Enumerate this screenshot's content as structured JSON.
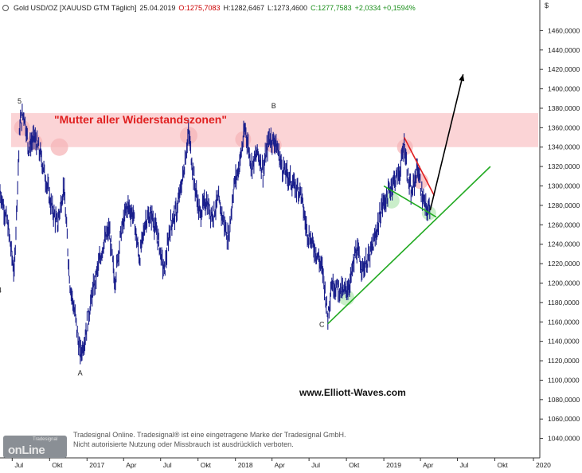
{
  "header": {
    "icon": "gold-coin-icon",
    "instrument": "Gold USD/OZ [XAUUSD GTM  Täglich]",
    "date": "25.04.2019",
    "open": "O:1275,7083",
    "high": "H:1282,6467",
    "low": "L:1273,4600",
    "close": "C:1277,7583",
    "change": "+2,0334 +0,1594%"
  },
  "annotation": "\"Mutter aller Widerstandszonen\"",
  "website": "www.Elliott-Waves.com",
  "copyright": {
    "line1": "Tradesignal Online. Tradesignal® ist eine eingetragene Marke der Tradesignal GmbH.",
    "line2": "Nicht autorisierte Nutzung oder Missbrauch ist ausdrücklich verboten."
  },
  "logo": {
    "main": "onLine",
    "sub": "Tradesignal"
  },
  "colors": {
    "candle": "#1a1f8c",
    "resistance_zone": "#fbd4d6",
    "support": "#22aa22",
    "red_trend": "#e02020",
    "arrow": "#000000"
  },
  "chart_data": {
    "type": "line",
    "currency_label": "$",
    "ylim": [
      1020,
      1480
    ],
    "y_ticks": [
      "1460,0000",
      "1440,0000",
      "1420,0000",
      "1400,0000",
      "1380,0000",
      "1360,0000",
      "1340,0000",
      "1320,0000",
      "1300,0000",
      "1280,0000",
      "1260,0000",
      "1240,0000",
      "1220,0000",
      "1200,0000",
      "1180,0000",
      "1160,0000",
      "1140,0000",
      "1120,0000",
      "1100,0000",
      "1080,0000",
      "1060,0000",
      "1040,0000"
    ],
    "x_ticks": [
      "Jul",
      "Okt",
      "2017",
      "Apr",
      "Jul",
      "Okt",
      "2018",
      "Apr",
      "Jul",
      "Okt",
      "2019",
      "Apr",
      "Jul",
      "Okt",
      "2020"
    ],
    "x_range": [
      "2016-06",
      "2020-01"
    ],
    "series": [
      {
        "values_approx": [
          [
            "2016-06-01",
            1295
          ],
          [
            "2016-06-20",
            1260
          ],
          [
            "2016-07-06",
            1210
          ],
          [
            "2016-07-20",
            1365
          ],
          [
            "2016-07-30",
            1375
          ],
          [
            "2016-08-10",
            1340
          ],
          [
            "2016-08-25",
            1350
          ],
          [
            "2016-09-10",
            1330
          ],
          [
            "2016-09-25",
            1300
          ],
          [
            "2016-10-05",
            1280
          ],
          [
            "2016-10-20",
            1260
          ],
          [
            "2016-11-05",
            1300
          ],
          [
            "2016-11-20",
            1200
          ],
          [
            "2016-12-05",
            1160
          ],
          [
            "2016-12-15",
            1125
          ],
          [
            "2016-12-25",
            1140
          ],
          [
            "2017-01-10",
            1180
          ],
          [
            "2017-01-25",
            1210
          ],
          [
            "2017-02-10",
            1240
          ],
          [
            "2017-02-25",
            1255
          ],
          [
            "2017-03-10",
            1200
          ],
          [
            "2017-03-25",
            1250
          ],
          [
            "2017-04-10",
            1280
          ],
          [
            "2017-04-25",
            1270
          ],
          [
            "2017-05-10",
            1225
          ],
          [
            "2017-05-25",
            1265
          ],
          [
            "2017-06-10",
            1270
          ],
          [
            "2017-06-25",
            1245
          ],
          [
            "2017-07-10",
            1210
          ],
          [
            "2017-07-25",
            1260
          ],
          [
            "2017-08-10",
            1275
          ],
          [
            "2017-08-25",
            1310
          ],
          [
            "2017-09-08",
            1355
          ],
          [
            "2017-09-20",
            1310
          ],
          [
            "2017-10-05",
            1270
          ],
          [
            "2017-10-20",
            1285
          ],
          [
            "2017-11-05",
            1270
          ],
          [
            "2017-11-20",
            1285
          ],
          [
            "2017-12-05",
            1260
          ],
          [
            "2017-12-15",
            1245
          ],
          [
            "2017-12-28",
            1300
          ],
          [
            "2018-01-10",
            1320
          ],
          [
            "2018-01-25",
            1360
          ],
          [
            "2018-02-10",
            1320
          ],
          [
            "2018-02-25",
            1335
          ],
          [
            "2018-03-10",
            1315
          ],
          [
            "2018-03-25",
            1350
          ],
          [
            "2018-04-10",
            1345
          ],
          [
            "2018-04-25",
            1320
          ],
          [
            "2018-05-10",
            1310
          ],
          [
            "2018-05-25",
            1300
          ],
          [
            "2018-06-10",
            1295
          ],
          [
            "2018-06-25",
            1255
          ],
          [
            "2018-07-10",
            1240
          ],
          [
            "2018-07-25",
            1225
          ],
          [
            "2018-08-05",
            1210
          ],
          [
            "2018-08-16",
            1165
          ],
          [
            "2018-08-25",
            1200
          ],
          [
            "2018-09-10",
            1195
          ],
          [
            "2018-09-25",
            1190
          ],
          [
            "2018-10-10",
            1200
          ],
          [
            "2018-10-25",
            1235
          ],
          [
            "2018-11-10",
            1215
          ],
          [
            "2018-11-25",
            1225
          ],
          [
            "2018-12-10",
            1245
          ],
          [
            "2018-12-28",
            1280
          ],
          [
            "2019-01-10",
            1290
          ],
          [
            "2019-01-25",
            1305
          ],
          [
            "2019-02-10",
            1315
          ],
          [
            "2019-02-20",
            1345
          ],
          [
            "2019-03-01",
            1310
          ],
          [
            "2019-03-10",
            1290
          ],
          [
            "2019-03-25",
            1320
          ],
          [
            "2019-04-05",
            1290
          ],
          [
            "2019-04-15",
            1275
          ],
          [
            "2019-04-25",
            1278
          ]
        ]
      }
    ],
    "resistance_zone": [
      1340,
      1375
    ],
    "wave_labels": [
      {
        "label": "5",
        "date": "2016-07-20",
        "price": 1385
      },
      {
        "label": "4",
        "date": "2016-06-01",
        "price": 1190
      },
      {
        "label": "A",
        "date": "2016-12-15",
        "price": 1105
      },
      {
        "label": "B",
        "date": "2018-04-05",
        "price": 1380
      },
      {
        "label": "C",
        "date": "2018-08-01",
        "price": 1155
      }
    ],
    "trend_lines": [
      {
        "name": "support",
        "from": [
          "2018-08-16",
          1158
        ],
        "to": [
          "2019-09-20",
          1320
        ]
      },
      {
        "name": "lower-channel",
        "from": [
          "2019-01-01",
          1300
        ],
        "to": [
          "2019-05-10",
          1268
        ]
      },
      {
        "name": "red-downtrend",
        "from": [
          "2019-02-20",
          1350
        ],
        "to": [
          "2019-05-05",
          1290
        ]
      },
      {
        "name": "projection-arrow",
        "from": [
          "2019-04-25",
          1275
        ],
        "to": [
          "2019-07-15",
          1415
        ]
      }
    ]
  }
}
